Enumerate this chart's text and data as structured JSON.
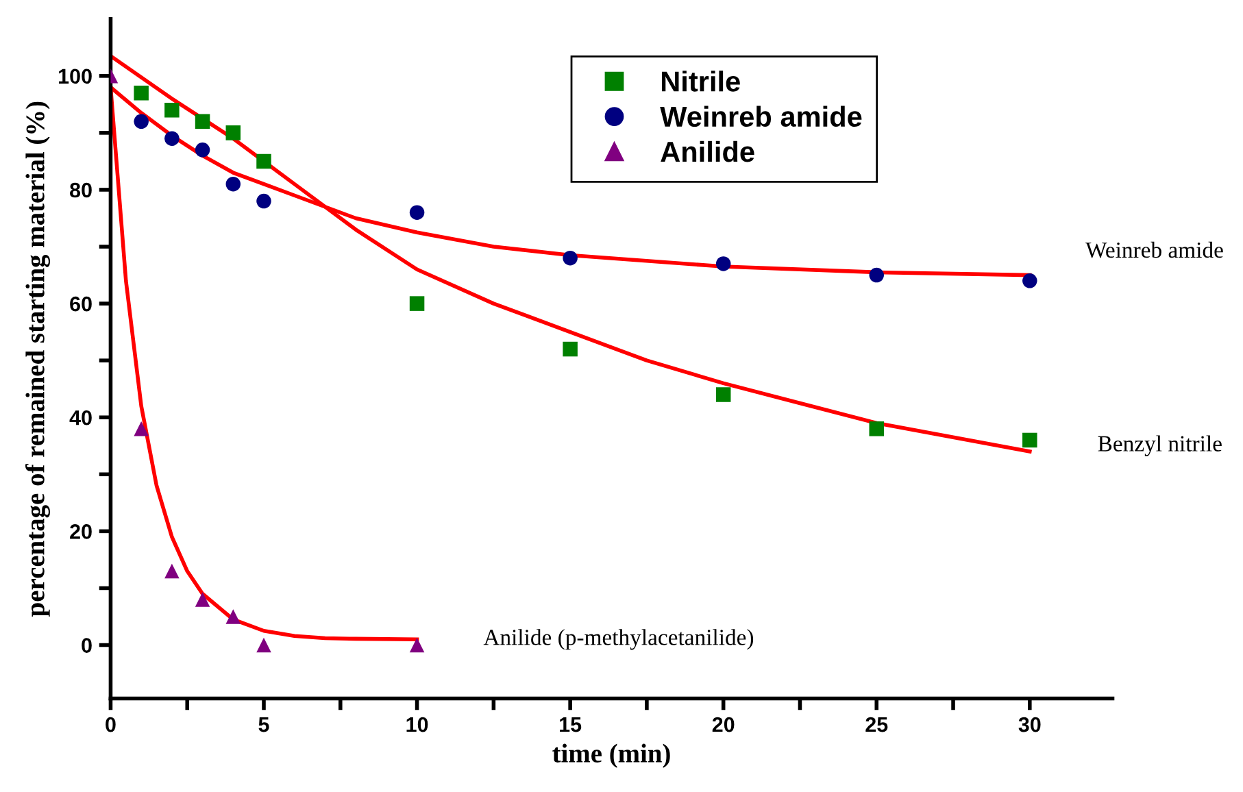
{
  "chart_data": {
    "type": "scatter",
    "xlabel": "time (min)",
    "ylabel": "percentage of remained starting material (%)",
    "xlim": [
      0,
      32.7
    ],
    "ylim": [
      -9.4,
      110
    ],
    "xticks": [
      0,
      {
        "value": 2.5,
        "label": null
      },
      5,
      {
        "value": 7.5,
        "label": null
      },
      10,
      {
        "value": 12.5,
        "label": null
      },
      15,
      {
        "value": 17.5,
        "label": null
      },
      20,
      {
        "value": 22.5,
        "label": null
      },
      25,
      {
        "value": 27.5,
        "label": null
      },
      30
    ],
    "yticks": [
      0,
      {
        "value": 10,
        "label": null
      },
      20,
      {
        "value": 30,
        "label": null
      },
      40,
      {
        "value": 50,
        "label": null
      },
      60,
      {
        "value": 70,
        "label": null
      },
      80,
      {
        "value": 90,
        "label": null
      },
      100
    ],
    "grid": false,
    "legend": "top",
    "series": [
      {
        "name": "Nitrile",
        "marker": "square",
        "color": "#008000",
        "x": [
          1,
          2,
          3,
          4,
          5,
          10,
          15,
          20,
          25,
          30
        ],
        "values": [
          97,
          94,
          92,
          90,
          85,
          60,
          52,
          44,
          38,
          36
        ]
      },
      {
        "name": "Weinreb amide",
        "marker": "circle",
        "color": "#000080",
        "x": [
          1,
          2,
          3,
          4,
          5,
          10,
          15,
          20,
          25,
          30
        ],
        "values": [
          92,
          89,
          87,
          81,
          78,
          76,
          68,
          67,
          65,
          64
        ]
      },
      {
        "name": "Anilide",
        "marker": "triangle",
        "color": "#800080",
        "x": [
          0,
          1,
          2,
          3,
          4,
          5,
          10
        ],
        "values": [
          100,
          38,
          13,
          8,
          5,
          0,
          0
        ]
      },
      {
        "type": "line",
        "color": "#ff0000",
        "x": [
          0,
          2,
          4,
          6,
          8,
          10,
          12.5,
          15,
          17.5,
          20,
          22.5,
          25,
          27.5,
          30
        ],
        "values": [
          103.5,
          96,
          89,
          81,
          73,
          66,
          60,
          55,
          50,
          46,
          42.5,
          39,
          36.5,
          34
        ]
      },
      {
        "type": "line",
        "color": "#ff0000",
        "x": [
          0,
          1,
          2,
          3,
          4,
          5,
          6,
          8,
          10,
          12.5,
          15,
          20,
          25,
          30
        ],
        "values": [
          98,
          93.5,
          89.5,
          86,
          83,
          81,
          79,
          75,
          72.5,
          70,
          68.5,
          66.5,
          65.5,
          65
        ]
      },
      {
        "type": "line",
        "color": "#ff0000",
        "x": [
          0,
          0.5,
          1,
          1.5,
          2,
          2.5,
          3,
          4,
          5,
          6,
          7,
          8,
          10
        ],
        "values": [
          98,
          64,
          42,
          28,
          19,
          13,
          9,
          4.5,
          2.5,
          1.6,
          1.2,
          1.1,
          1
        ]
      }
    ],
    "annotations": [
      "Weinreb amide",
      "Benzyl nitrile",
      "Anilide (p-methylacetanilide)"
    ]
  }
}
